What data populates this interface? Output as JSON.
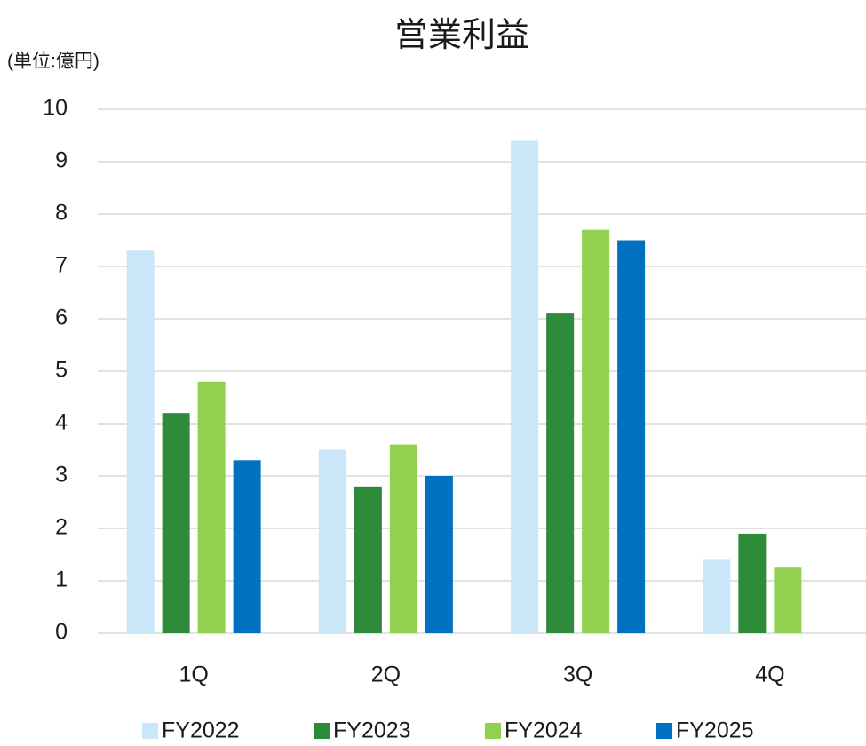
{
  "chart_data": {
    "type": "bar",
    "title": "営業利益",
    "y_axis_label": "(単位:億円)",
    "categories": [
      "1Q",
      "2Q",
      "3Q",
      "4Q"
    ],
    "series": [
      {
        "name": "FY2022",
        "color": "#c9e7f9",
        "values": [
          7.3,
          3.5,
          9.4,
          1.4
        ]
      },
      {
        "name": "FY2023",
        "color": "#2e8b3a",
        "values": [
          4.2,
          2.8,
          6.1,
          1.9
        ]
      },
      {
        "name": "FY2024",
        "color": "#92d050",
        "values": [
          4.8,
          3.6,
          7.7,
          1.25
        ]
      },
      {
        "name": "FY2025",
        "color": "#0070c0",
        "values": [
          3.3,
          3.0,
          7.5,
          null
        ]
      }
    ],
    "ylim": [
      0,
      10
    ],
    "yticks": [
      0,
      1,
      2,
      3,
      4,
      5,
      6,
      7,
      8,
      9,
      10
    ],
    "grid": true
  }
}
